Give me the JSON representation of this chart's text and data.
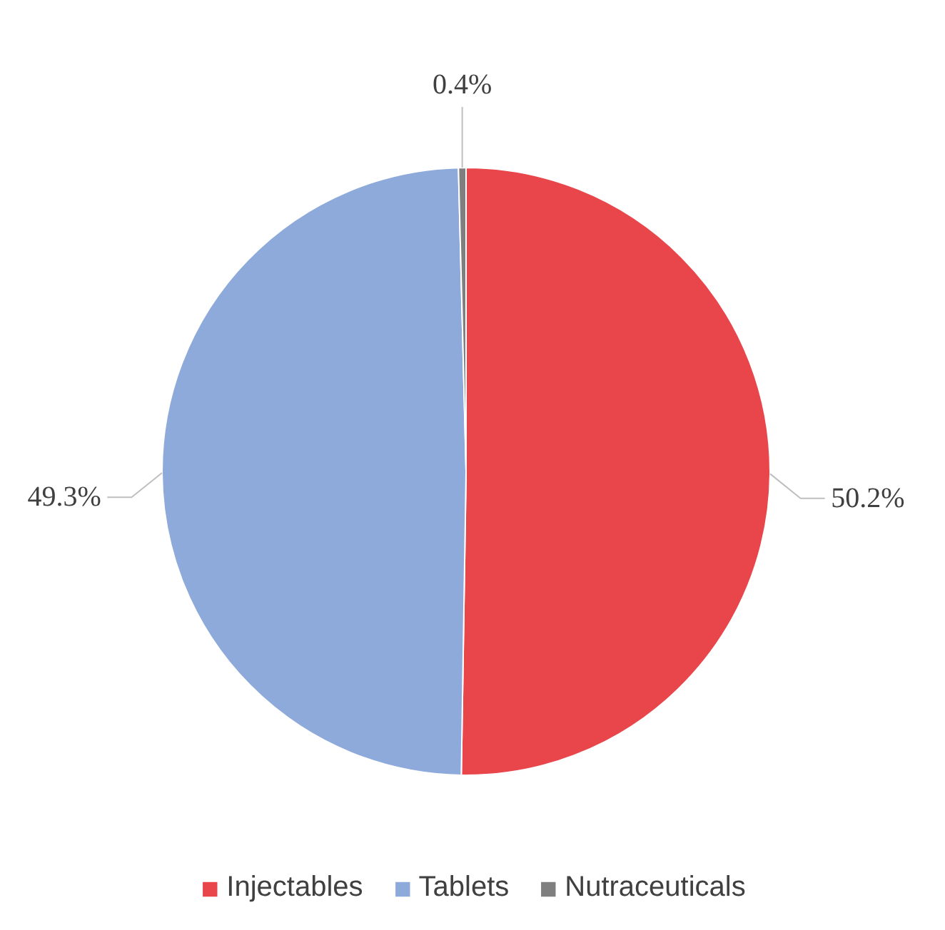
{
  "chart_data": {
    "type": "pie",
    "categories": [
      "Injectables",
      "Tablets",
      "Nutraceuticals"
    ],
    "values": [
      50.2,
      49.3,
      0.4
    ],
    "colors": [
      "#e8464b",
      "#8eaadb",
      "#7f7f7f"
    ],
    "value_labels": [
      "50.2%",
      "49.3%",
      "0.4%"
    ],
    "legend": "bottom"
  }
}
